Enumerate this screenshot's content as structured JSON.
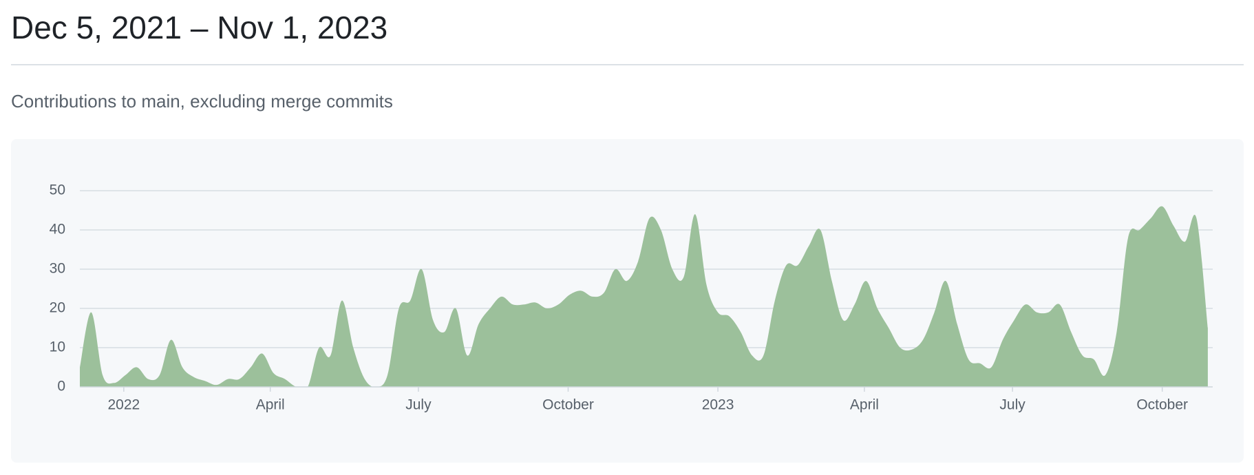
{
  "chart_data": {
    "type": "area",
    "title": "Dec 5, 2021 – Nov 1, 2023",
    "subtitle": "Contributions to main, excluding merge commits",
    "x": [
      "2021-12-05",
      "2021-12-12",
      "2021-12-19",
      "2021-12-26",
      "2022-01-02",
      "2022-01-09",
      "2022-01-16",
      "2022-01-23",
      "2022-01-30",
      "2022-02-06",
      "2022-02-13",
      "2022-02-20",
      "2022-02-27",
      "2022-03-06",
      "2022-03-13",
      "2022-03-20",
      "2022-03-27",
      "2022-04-03",
      "2022-04-10",
      "2022-04-17",
      "2022-04-24",
      "2022-05-01",
      "2022-05-08",
      "2022-05-15",
      "2022-05-22",
      "2022-05-29",
      "2022-06-05",
      "2022-06-12",
      "2022-06-19",
      "2022-06-26",
      "2022-07-03",
      "2022-07-10",
      "2022-07-17",
      "2022-07-24",
      "2022-07-31",
      "2022-08-07",
      "2022-08-14",
      "2022-08-21",
      "2022-08-28",
      "2022-09-04",
      "2022-09-11",
      "2022-09-18",
      "2022-09-25",
      "2022-10-02",
      "2022-10-09",
      "2022-10-16",
      "2022-10-23",
      "2022-10-30",
      "2022-11-06",
      "2022-11-13",
      "2022-11-20",
      "2022-11-27",
      "2022-12-04",
      "2022-12-11",
      "2022-12-18",
      "2022-12-25",
      "2023-01-01",
      "2023-01-08",
      "2023-01-15",
      "2023-01-22",
      "2023-01-29",
      "2023-02-05",
      "2023-02-12",
      "2023-02-19",
      "2023-02-26",
      "2023-03-05",
      "2023-03-12",
      "2023-03-19",
      "2023-03-26",
      "2023-04-02",
      "2023-04-09",
      "2023-04-16",
      "2023-04-23",
      "2023-04-30",
      "2023-05-07",
      "2023-05-14",
      "2023-05-21",
      "2023-05-28",
      "2023-06-04",
      "2023-06-11",
      "2023-06-18",
      "2023-06-25",
      "2023-07-02",
      "2023-07-09",
      "2023-07-16",
      "2023-07-23",
      "2023-07-30",
      "2023-08-06",
      "2023-08-13",
      "2023-08-20",
      "2023-08-27",
      "2023-09-03",
      "2023-09-10",
      "2023-09-17",
      "2023-09-24",
      "2023-10-01",
      "2023-10-08",
      "2023-10-15",
      "2023-10-22",
      "2023-10-29"
    ],
    "series": [
      {
        "name": "Contributions",
        "color": "#9cc09b",
        "values": [
          5,
          19,
          3,
          1,
          3,
          5,
          2,
          3,
          12,
          5,
          2.5,
          1.5,
          0.5,
          2,
          2,
          5,
          8.5,
          3.5,
          2,
          0,
          0,
          10,
          8,
          22,
          10,
          2,
          0,
          3,
          20,
          22,
          30,
          17,
          14,
          20,
          8,
          16,
          20,
          23,
          21,
          21,
          21.5,
          20,
          21,
          23.5,
          24.5,
          23,
          24,
          30,
          27,
          32,
          43,
          40,
          30,
          28,
          44,
          26,
          19,
          18,
          14,
          8,
          8,
          22,
          31,
          31,
          36,
          40,
          27,
          17,
          21,
          27,
          20,
          15,
          10,
          9.5,
          12,
          19,
          27,
          16,
          7,
          6,
          5,
          12,
          17,
          21,
          19,
          19,
          21,
          14,
          8,
          7,
          3,
          14,
          38,
          40,
          43,
          46,
          41,
          37,
          43,
          15
        ]
      }
    ],
    "xlim": [
      "2021-12-05",
      "2023-11-01"
    ],
    "xticks": [
      {
        "value": "2022-01-01",
        "label": "2022"
      },
      {
        "value": "2022-04-01",
        "label": "April"
      },
      {
        "value": "2022-07-01",
        "label": "July"
      },
      {
        "value": "2022-10-01",
        "label": "October"
      },
      {
        "value": "2023-01-01",
        "label": "2023"
      },
      {
        "value": "2023-04-01",
        "label": "April"
      },
      {
        "value": "2023-07-01",
        "label": "July"
      },
      {
        "value": "2023-10-01",
        "label": "October"
      }
    ],
    "ylim": [
      0,
      50
    ],
    "yticks": [
      0,
      10,
      20,
      30,
      40,
      50
    ],
    "grid": true
  }
}
